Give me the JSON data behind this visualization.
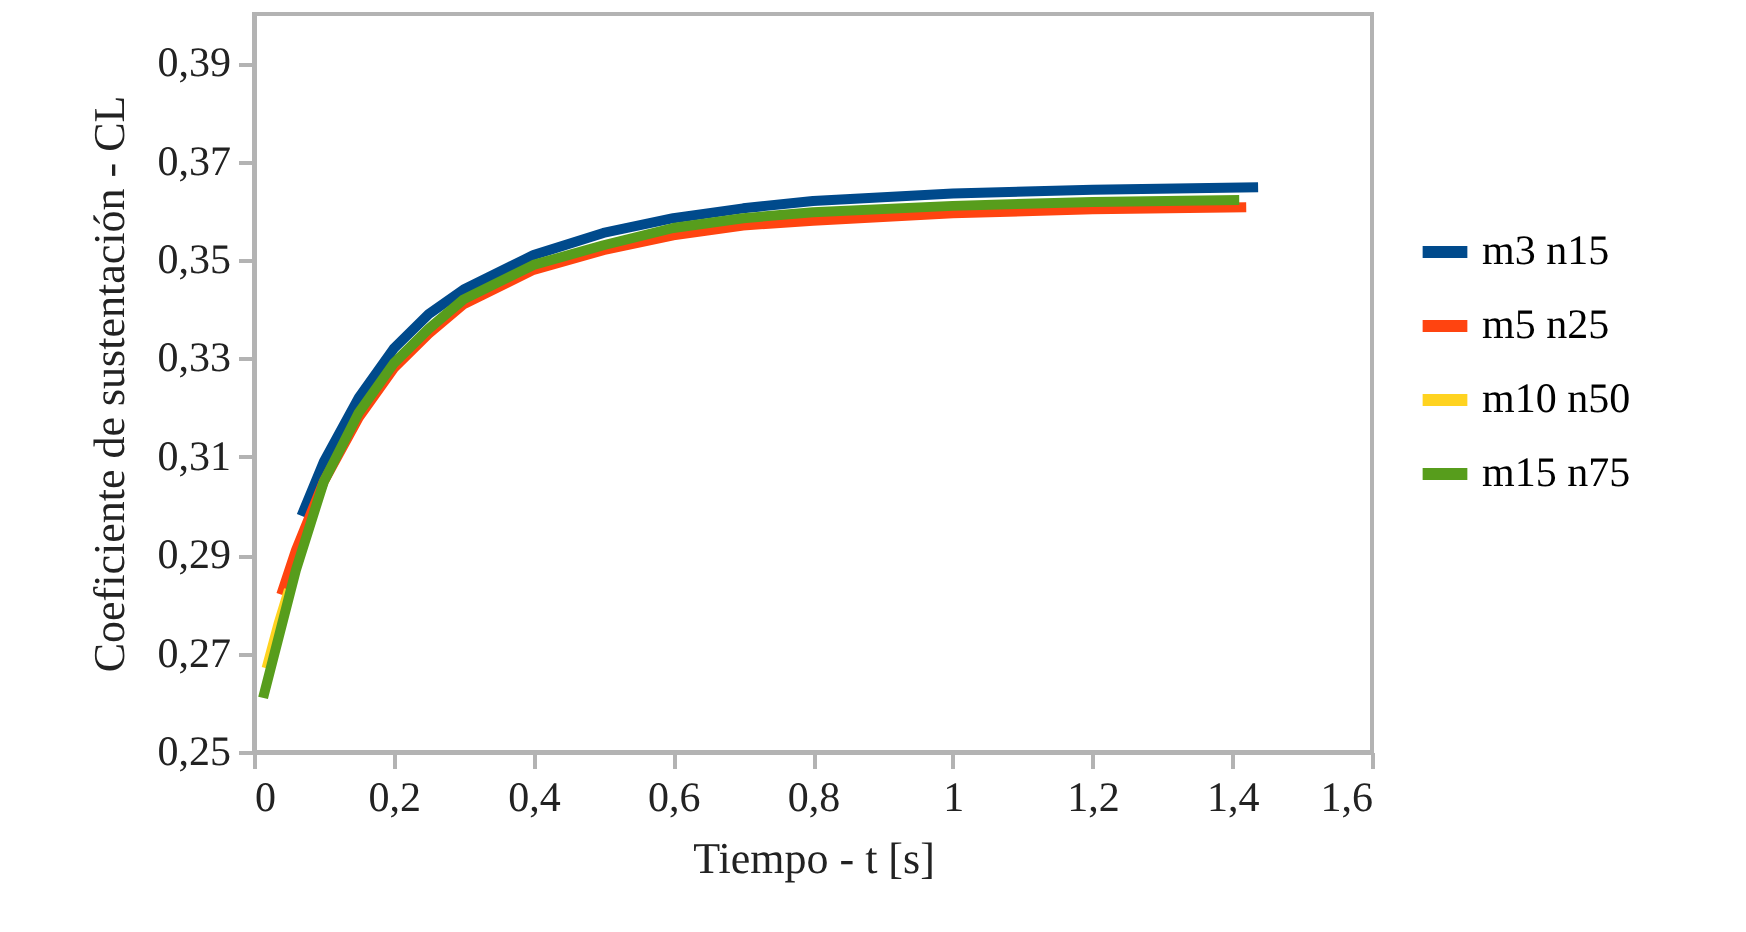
{
  "chart_data": {
    "type": "line",
    "xlabel": "Tiempo - t [s]",
    "ylabel": "Coeficiente de sustentación - CL",
    "xlim": [
      0,
      1.6
    ],
    "xticks": [
      0,
      {
        "value": 0.2,
        "label": "0,2"
      },
      {
        "value": 0.4,
        "label": "0,4"
      },
      {
        "value": 0.6,
        "label": "0,6"
      },
      {
        "value": 0.8,
        "label": "0,8"
      },
      1,
      {
        "value": 1.2,
        "label": "1,2"
      },
      {
        "value": 1.4,
        "label": "1,4"
      },
      {
        "value": 1.6,
        "label": "1,6"
      }
    ],
    "ylim": [
      0.25,
      0.4
    ],
    "yticks": [
      {
        "value": 0.25,
        "label": "0,25"
      },
      {
        "value": 0.27,
        "label": "0,27"
      },
      {
        "value": 0.29,
        "label": "0,29"
      },
      {
        "value": 0.31,
        "label": "0,31"
      },
      {
        "value": 0.33,
        "label": "0,33"
      },
      {
        "value": 0.35,
        "label": "0,35"
      },
      {
        "value": 0.37,
        "label": "0,37"
      },
      {
        "value": 0.39,
        "label": "0,39"
      }
    ],
    "legend": "right",
    "grid": false,
    "marker": "none",
    "line_style": "solid",
    "series": [
      {
        "name": "m3 n15",
        "color": "#004a8c",
        "x": [
          0.068,
          0.1,
          0.15,
          0.2,
          0.25,
          0.3,
          0.4,
          0.5,
          0.6,
          0.7,
          0.8,
          1.0,
          1.2,
          1.437
        ],
        "values": [
          0.298,
          0.309,
          0.322,
          0.332,
          0.339,
          0.344,
          0.351,
          0.3555,
          0.3585,
          0.3605,
          0.362,
          0.3635,
          0.3643,
          0.3648
        ]
      },
      {
        "name": "m5 n25",
        "color": "#ff4410",
        "x": [
          0.039,
          0.06,
          0.1,
          0.15,
          0.2,
          0.25,
          0.3,
          0.4,
          0.5,
          0.6,
          0.7,
          0.8,
          1.0,
          1.2,
          1.42
        ],
        "values": [
          0.282,
          0.291,
          0.305,
          0.318,
          0.328,
          0.335,
          0.341,
          0.348,
          0.352,
          0.355,
          0.357,
          0.358,
          0.3595,
          0.3603,
          0.3607
        ]
      },
      {
        "name": "m10 n50",
        "color": "#ffd320",
        "x": [
          0.018,
          0.035,
          0.05
        ],
        "values": [
          0.267,
          0.276,
          0.283
        ]
      },
      {
        "name": "m15 n75",
        "color": "#579d1c",
        "x": [
          0.013,
          0.06,
          0.1,
          0.15,
          0.2,
          0.25,
          0.3,
          0.4,
          0.5,
          0.6,
          0.7,
          0.8,
          1.0,
          1.2,
          1.41
        ],
        "values": [
          0.261,
          0.287,
          0.305,
          0.319,
          0.329,
          0.336,
          0.342,
          0.349,
          0.353,
          0.3565,
          0.3585,
          0.3597,
          0.361,
          0.3618,
          0.3622
        ]
      }
    ]
  }
}
